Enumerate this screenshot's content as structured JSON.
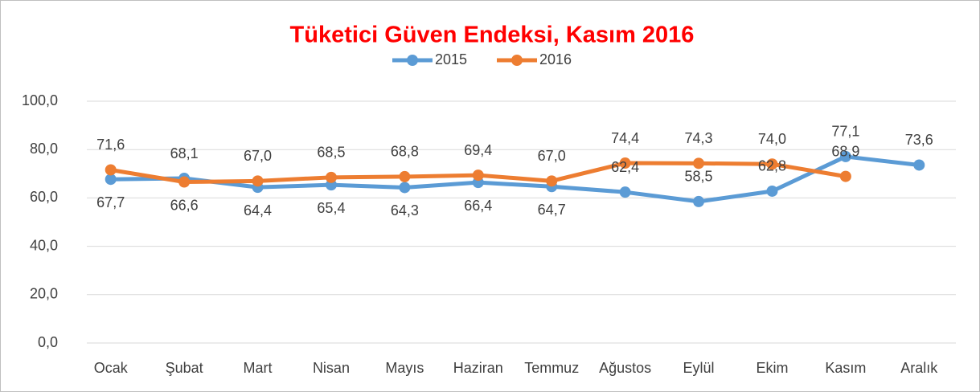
{
  "chart_data": {
    "type": "line",
    "title": "Tüketici Güven Endeksi, Kasım 2016",
    "categories": [
      "Ocak",
      "Şubat",
      "Mart",
      "Nisan",
      "Mayıs",
      "Haziran",
      "Temmuz",
      "Ağustos",
      "Eylül",
      "Ekim",
      "Kasım",
      "Aralık"
    ],
    "series": [
      {
        "name": "2015",
        "color": "#5b9bd5",
        "values": [
          67.7,
          68.1,
          64.4,
          65.4,
          64.3,
          66.4,
          64.7,
          62.4,
          58.5,
          62.8,
          77.1,
          73.6
        ],
        "value_labels": [
          "67,7",
          "68,1",
          "64,4",
          "65,4",
          "64,3",
          "66,4",
          "64,7",
          "62,4",
          "58,5",
          "62,8",
          "77,1",
          "73,6"
        ]
      },
      {
        "name": "2016",
        "color": "#ed7d31",
        "values": [
          71.6,
          66.6,
          67.0,
          68.5,
          68.8,
          69.4,
          67.0,
          74.4,
          74.3,
          74.0,
          68.9,
          null
        ],
        "value_labels": [
          "71,6",
          "66,6",
          "67,0",
          "68,5",
          "68,8",
          "69,4",
          "67,0",
          "74,4",
          "74,3",
          "74,0",
          "68,9",
          null
        ]
      }
    ],
    "ylim": [
      0,
      100
    ],
    "yticks": [
      {
        "value": 0,
        "label": "0,0"
      },
      {
        "value": 20,
        "label": "20,0"
      },
      {
        "value": 40,
        "label": "40,0"
      },
      {
        "value": 60,
        "label": "60,0"
      },
      {
        "value": 80,
        "label": "80,0"
      },
      {
        "value": 100,
        "label": "100,0"
      }
    ],
    "grid": true,
    "legend": "top"
  }
}
